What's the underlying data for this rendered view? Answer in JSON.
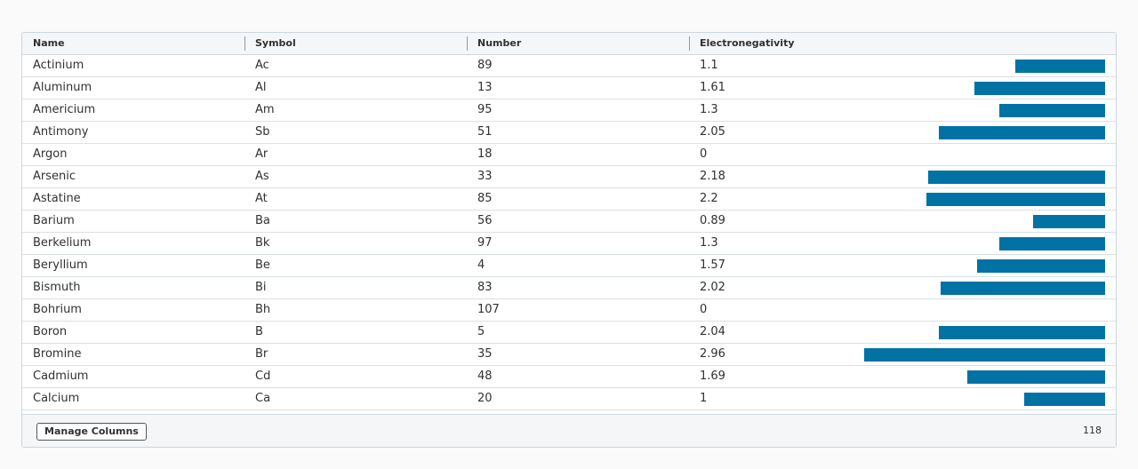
{
  "columns": {
    "name": "Name",
    "symbol": "Symbol",
    "number": "Number",
    "electronegativity": "Electronegativity"
  },
  "bar_scale_max": 3.98,
  "rows": [
    {
      "name": "Actinium",
      "symbol": "Ac",
      "number": "89",
      "electronegativity": "1.1",
      "value": 1.1
    },
    {
      "name": "Aluminum",
      "symbol": "Al",
      "number": "13",
      "electronegativity": "1.61",
      "value": 1.61
    },
    {
      "name": "Americium",
      "symbol": "Am",
      "number": "95",
      "electronegativity": "1.3",
      "value": 1.3
    },
    {
      "name": "Antimony",
      "symbol": "Sb",
      "number": "51",
      "electronegativity": "2.05",
      "value": 2.05
    },
    {
      "name": "Argon",
      "symbol": "Ar",
      "number": "18",
      "electronegativity": "0",
      "value": 0
    },
    {
      "name": "Arsenic",
      "symbol": "As",
      "number": "33",
      "electronegativity": "2.18",
      "value": 2.18
    },
    {
      "name": "Astatine",
      "symbol": "At",
      "number": "85",
      "electronegativity": "2.2",
      "value": 2.2
    },
    {
      "name": "Barium",
      "symbol": "Ba",
      "number": "56",
      "electronegativity": "0.89",
      "value": 0.89
    },
    {
      "name": "Berkelium",
      "symbol": "Bk",
      "number": "97",
      "electronegativity": "1.3",
      "value": 1.3
    },
    {
      "name": "Beryllium",
      "symbol": "Be",
      "number": "4",
      "electronegativity": "1.57",
      "value": 1.57
    },
    {
      "name": "Bismuth",
      "symbol": "Bi",
      "number": "83",
      "electronegativity": "2.02",
      "value": 2.02
    },
    {
      "name": "Bohrium",
      "symbol": "Bh",
      "number": "107",
      "electronegativity": "0",
      "value": 0
    },
    {
      "name": "Boron",
      "symbol": "B",
      "number": "5",
      "electronegativity": "2.04",
      "value": 2.04
    },
    {
      "name": "Bromine",
      "symbol": "Br",
      "number": "35",
      "electronegativity": "2.96",
      "value": 2.96
    },
    {
      "name": "Cadmium",
      "symbol": "Cd",
      "number": "48",
      "electronegativity": "1.69",
      "value": 1.69
    },
    {
      "name": "Calcium",
      "symbol": "Ca",
      "number": "20",
      "electronegativity": "1",
      "value": 1
    }
  ],
  "footer": {
    "manage_columns_label": "Manage Columns",
    "total_count": "118"
  },
  "colors": {
    "bar": "#0072a3",
    "header_bg": "#f4f6f8",
    "border": "#ccd6de"
  }
}
